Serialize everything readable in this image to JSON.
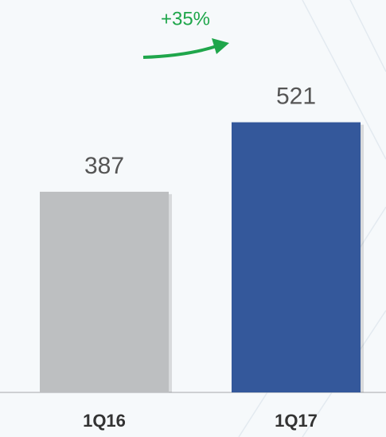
{
  "chart_data": {
    "type": "bar",
    "categories": [
      "1Q16",
      "1Q17"
    ],
    "values": [
      387,
      521
    ],
    "colors": [
      "#bdbfc1",
      "#34589b"
    ],
    "ylim": [
      0,
      700
    ],
    "annotation": "+35%",
    "annotation_color": "#1fa64b"
  }
}
